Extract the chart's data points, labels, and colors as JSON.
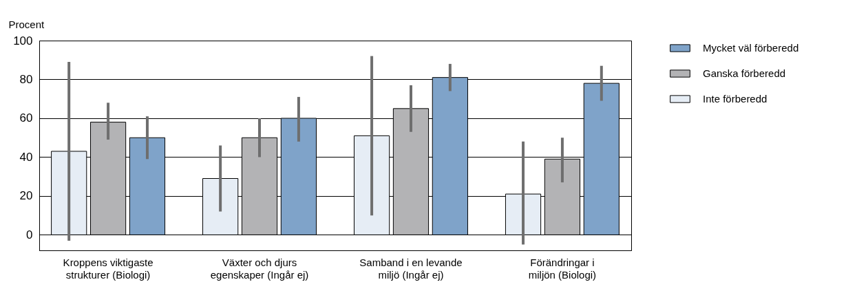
{
  "chart_data": {
    "type": "bar",
    "ylabel": "Procent",
    "categories": [
      "Kroppens viktigaste\nstrukturer (Biologi)",
      "Växter och djurs\negenskaper (Ingår ej)",
      "Samband i en levande\nmiljö (Ingår ej)",
      "Förändringar i\nmiljön (Biologi)"
    ],
    "series": [
      {
        "name": "Inte förberedd",
        "color": "#e6edf5",
        "values": [
          43,
          29,
          51,
          21
        ],
        "errors": [
          [
            -3,
            89
          ],
          [
            12,
            46
          ],
          [
            10,
            92
          ],
          [
            -5,
            48
          ]
        ]
      },
      {
        "name": "Ganska förberedd",
        "color": "#b3b3b5",
        "values": [
          58,
          50,
          65,
          39
        ],
        "errors": [
          [
            49,
            68
          ],
          [
            40,
            60
          ],
          [
            53,
            77
          ],
          [
            27,
            50
          ]
        ]
      },
      {
        "name": "Mycket väl förberedd",
        "color": "#7fa3c9",
        "values": [
          50,
          60,
          81,
          78
        ],
        "errors": [
          [
            39,
            61
          ],
          [
            48,
            71
          ],
          [
            74,
            88
          ],
          [
            69,
            87
          ]
        ]
      }
    ],
    "ylim": [
      -8,
      100
    ],
    "yticks": [
      0,
      20,
      40,
      60,
      80,
      100
    ],
    "grid": "y",
    "legend": "top right"
  }
}
